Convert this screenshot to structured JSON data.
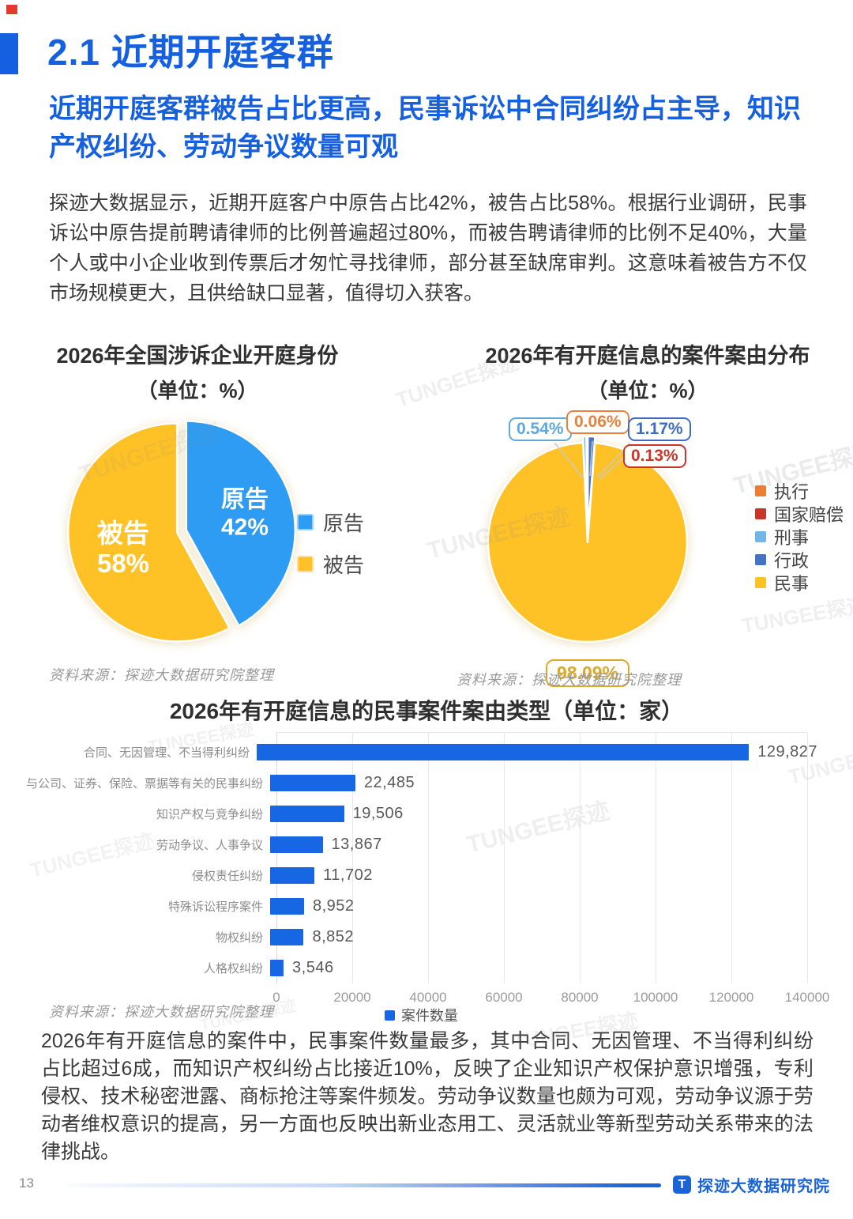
{
  "page": {
    "number": "13",
    "brand": "探迹大数据研究院"
  },
  "header": {
    "section": "2.1",
    "title": "2.1 近期开庭客群",
    "subtitle": "近期开庭客群被告占比更高，民事诉讼中合同纠纷占主导，知识产权纠纷、劳动争议数量可观"
  },
  "intro": "探迹大数据显示，近期开庭客户中原告占比42%，被告占比58%。根据行业调研，民事诉讼中原告提前聘请律师的比例普遍超过80%，而被告聘请律师的比例不足40%，大量个人或中小企业收到传票后才匆忙寻找律师，部分甚至缺席审判。这意味着被告方不仅市场规模更大，且供给缺口显著，值得切入获客。",
  "source_note": "资料来源：探迹大数据研究院整理",
  "watermark": "TUNGEE探迹",
  "chart_data": [
    {
      "type": "pie",
      "title": "2026年全国涉诉企业开庭身份",
      "subtitle": "（单位：%）",
      "labels": [
        "原告",
        "被告"
      ],
      "values": [
        42,
        58
      ],
      "colors": [
        "#2D9CF2",
        "#FFC226"
      ],
      "swatch_borders": [
        "#9ED0F7",
        "#FFDF8E"
      ],
      "data_labels": [
        {
          "name": "原告",
          "pct": "42%"
        },
        {
          "name": "被告",
          "pct": "58%"
        }
      ],
      "legend_position": "right"
    },
    {
      "type": "pie",
      "title": "2026年有开庭信息的案件案由分布",
      "subtitle": "（单位：%）",
      "labels": [
        "执行",
        "国家赔偿",
        "刑事",
        "行政",
        "民事"
      ],
      "values": [
        0.06,
        0.13,
        0.54,
        1.17,
        98.09
      ],
      "colors": [
        "#ED7D31",
        "#C9342B",
        "#74B5E8",
        "#4472C4",
        "#FFC226"
      ],
      "legend_position": "right",
      "callouts": [
        {
          "text": "0.54%",
          "color": "#5FA8DC"
        },
        {
          "text": "0.06%",
          "color": "#E8813F"
        },
        {
          "text": "1.17%",
          "color": "#3F6BC8"
        },
        {
          "text": "0.13%",
          "color": "#C9342B"
        },
        {
          "text": "98.09%",
          "color": "#DCA92A"
        }
      ]
    },
    {
      "type": "bar",
      "title": "2026年有开庭信息的民事案件案由类型（单位：家）",
      "categories": [
        "合同、无因管理、不当得利纠纷",
        "与公司、证券、保险、票据等有关的民事纠纷",
        "知识产权与竞争纠纷",
        "劳动争议、人事争议",
        "侵权责任纠纷",
        "特殊诉讼程序案件",
        "物权纠纷",
        "人格权纠纷"
      ],
      "values": [
        129827,
        22485,
        19506,
        13867,
        11702,
        8952,
        8852,
        3546
      ],
      "value_labels": [
        "129,827",
        "22,485",
        "19,506",
        "13,867",
        "11,702",
        "8,952",
        "8,852",
        "3,546"
      ],
      "xlim": [
        0,
        140000
      ],
      "xticks": [
        "0",
        "20000",
        "40000",
        "60000",
        "80000",
        "100000",
        "120000",
        "140000"
      ],
      "legend": "案件数量",
      "bar_color": "#1766E3",
      "grid": true
    }
  ],
  "analysis": "2026年有开庭信息的案件中，民事案件数量最多，其中合同、无因管理、不当得利纠纷占比超过6成，而知识产权纠纷占比接近10%，反映了企业知识产权保护意识增强，专利侵权、技术秘密泄露、商标抢注等案件频发。劳动争议数量也颇为可观，劳动争议源于劳动者维权意识的提高，另一方面也反映出新业态用工、灵活就业等新型劳动关系带来的法律挑战。"
}
